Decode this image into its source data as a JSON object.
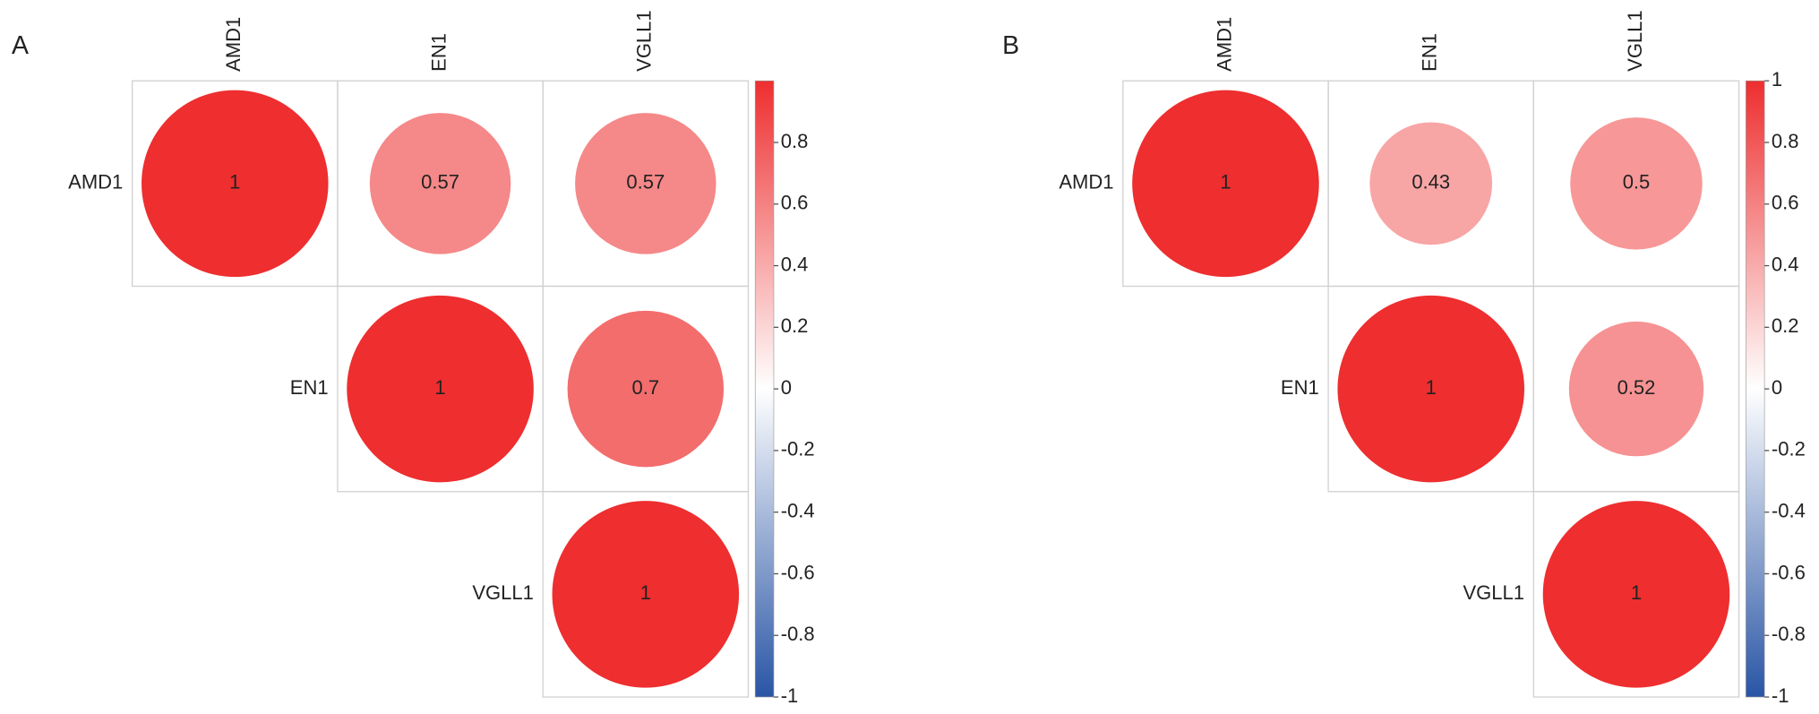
{
  "chart_data": [
    {
      "type": "corrplot",
      "panel_label": "A",
      "categories": [
        "AMD1",
        "EN1",
        "VGLL1"
      ],
      "values": [
        [
          1,
          0.57,
          0.57
        ],
        [
          null,
          1,
          0.7
        ],
        [
          null,
          null,
          1
        ]
      ],
      "colors": [
        "#2955a5",
        "#ffffff",
        "#ee2e2f"
      ],
      "ylim": [
        -1,
        1
      ],
      "yticks": [
        -1,
        -0.8,
        -0.6,
        -0.4,
        -0.2,
        0,
        0.2,
        0.4,
        0.6,
        0.8
      ]
    },
    {
      "type": "corrplot",
      "panel_label": "B",
      "categories": [
        "AMD1",
        "EN1",
        "VGLL1"
      ],
      "values": [
        [
          1,
          0.43,
          0.5
        ],
        [
          null,
          1,
          0.52
        ],
        [
          null,
          null,
          1
        ]
      ],
      "colors": [
        "#2955a5",
        "#ffffff",
        "#ee2e2f"
      ],
      "ylim": [
        -1,
        1
      ],
      "yticks": [
        -1,
        -0.8,
        -0.6,
        -0.4,
        -0.2,
        0,
        0.2,
        0.4,
        0.6,
        0.8,
        1
      ]
    }
  ]
}
